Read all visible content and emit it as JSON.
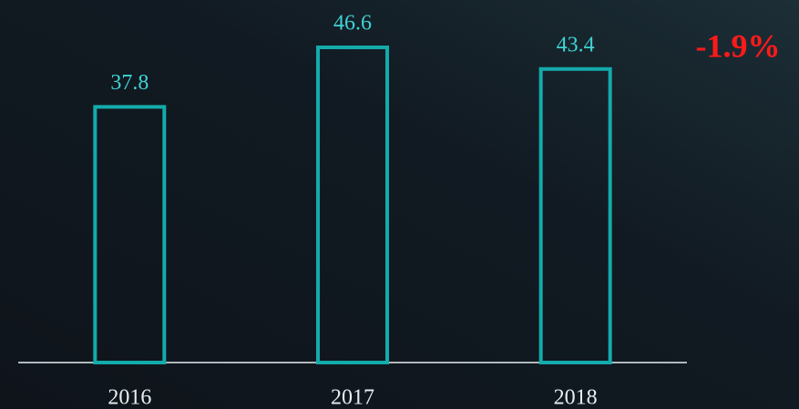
{
  "chart_data": {
    "type": "bar",
    "categories": [
      "2016",
      "2017",
      "2018"
    ],
    "values": [
      37.8,
      46.6,
      43.4
    ],
    "color": "#14abab",
    "annotation": "-1.9%"
  }
}
